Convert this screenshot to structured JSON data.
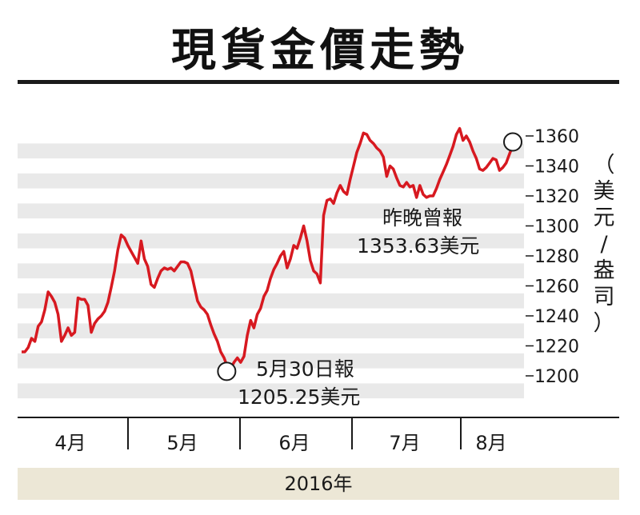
{
  "title": "現貨金價走勢",
  "year_label": "2016年",
  "chart_data": {
    "type": "line",
    "title": "現貨金價走勢",
    "ylabel": [
      "（",
      "美",
      "元",
      "/",
      "盎",
      "司",
      "）"
    ],
    "ylim": [
      1193,
      1374
    ],
    "yticks": [
      "1360",
      "1340",
      "1320",
      "1300",
      "1280",
      "1260",
      "1240",
      "1220",
      "1200"
    ],
    "ytick_values": [
      1360,
      1340,
      1320,
      1300,
      1280,
      1260,
      1240,
      1220,
      1200
    ],
    "months": [
      "4月",
      "5月",
      "6月",
      "7月",
      "8月"
    ],
    "grid": "horizontal bands",
    "line_color": "#d71920",
    "series": [
      {
        "values": [
          1216,
          1216,
          1219,
          1225,
          1223,
          1233,
          1236,
          1244,
          1256,
          1253,
          1249,
          1241,
          1223,
          1227,
          1232,
          1227,
          1229,
          1252,
          1251,
          1251,
          1247,
          1229,
          1235,
          1238,
          1240,
          1243,
          1249,
          1259,
          1270,
          1284,
          1294,
          1292,
          1287,
          1283,
          1279,
          1275,
          1290,
          1278,
          1273,
          1261,
          1259,
          1265,
          1270,
          1272,
          1271,
          1272,
          1270,
          1273,
          1276,
          1276,
          1275,
          1270,
          1260,
          1250,
          1246,
          1244,
          1241,
          1234,
          1228,
          1223,
          1216,
          1212,
          1206,
          1205,
          1209,
          1212,
          1209,
          1213,
          1227,
          1237,
          1232,
          1241,
          1245,
          1253,
          1257,
          1265,
          1271,
          1275,
          1280,
          1283,
          1272,
          1278,
          1287,
          1285,
          1292,
          1300,
          1290,
          1277,
          1270,
          1268,
          1262,
          1307,
          1317,
          1318,
          1315,
          1322,
          1327,
          1323,
          1321,
          1331,
          1340,
          1349,
          1355,
          1362,
          1361,
          1357,
          1355,
          1352,
          1350,
          1346,
          1333,
          1340,
          1338,
          1332,
          1327,
          1326,
          1329,
          1326,
          1327,
          1319,
          1327,
          1321,
          1319,
          1320,
          1320,
          1325,
          1331,
          1336,
          1341,
          1347,
          1353,
          1361,
          1365,
          1357,
          1360,
          1356,
          1350,
          1345,
          1338,
          1337,
          1339,
          1342,
          1345,
          1344,
          1337,
          1339,
          1342,
          1348,
          1353.63
        ]
      }
    ],
    "annotations": [
      {
        "lines": [
          "5月30日報",
          "1205.25美元"
        ],
        "value": 1205.25
      },
      {
        "lines": [
          "昨晚曾報",
          "1353.63美元"
        ],
        "value": 1353.63
      }
    ]
  }
}
